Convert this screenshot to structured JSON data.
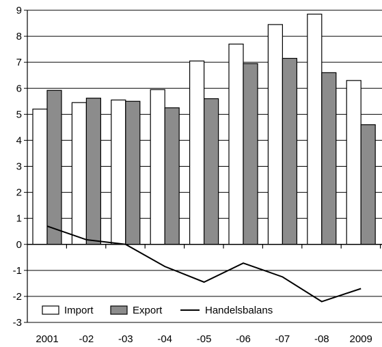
{
  "chart_data": {
    "type": "bar",
    "categories": [
      "2001",
      "-02",
      "-03",
      "-04",
      "-05",
      "-06",
      "-07",
      "-08",
      "2009"
    ],
    "series": [
      {
        "name": "Import",
        "kind": "bar",
        "color": "#ffffff",
        "values": [
          5.2,
          5.45,
          5.55,
          5.95,
          7.05,
          7.7,
          8.45,
          8.85,
          6.3
        ]
      },
      {
        "name": "Export",
        "kind": "bar",
        "color": "#8c8c8c",
        "values": [
          5.92,
          5.62,
          5.5,
          5.25,
          5.6,
          6.95,
          7.15,
          6.6,
          4.6
        ]
      },
      {
        "name": "Handelsbalans",
        "kind": "line",
        "color": "#000000",
        "values": [
          0.7,
          0.18,
          0.0,
          -0.85,
          -1.45,
          -0.72,
          -1.25,
          -2.2,
          -1.7
        ]
      }
    ],
    "ylim": [
      -3,
      9
    ],
    "yticks": [
      -3,
      -2,
      -1,
      0,
      1,
      2,
      3,
      4,
      5,
      6,
      7,
      8,
      9
    ],
    "grid": true,
    "legend_position": "bottom-left",
    "title": "",
    "xlabel": "",
    "ylabel": ""
  }
}
